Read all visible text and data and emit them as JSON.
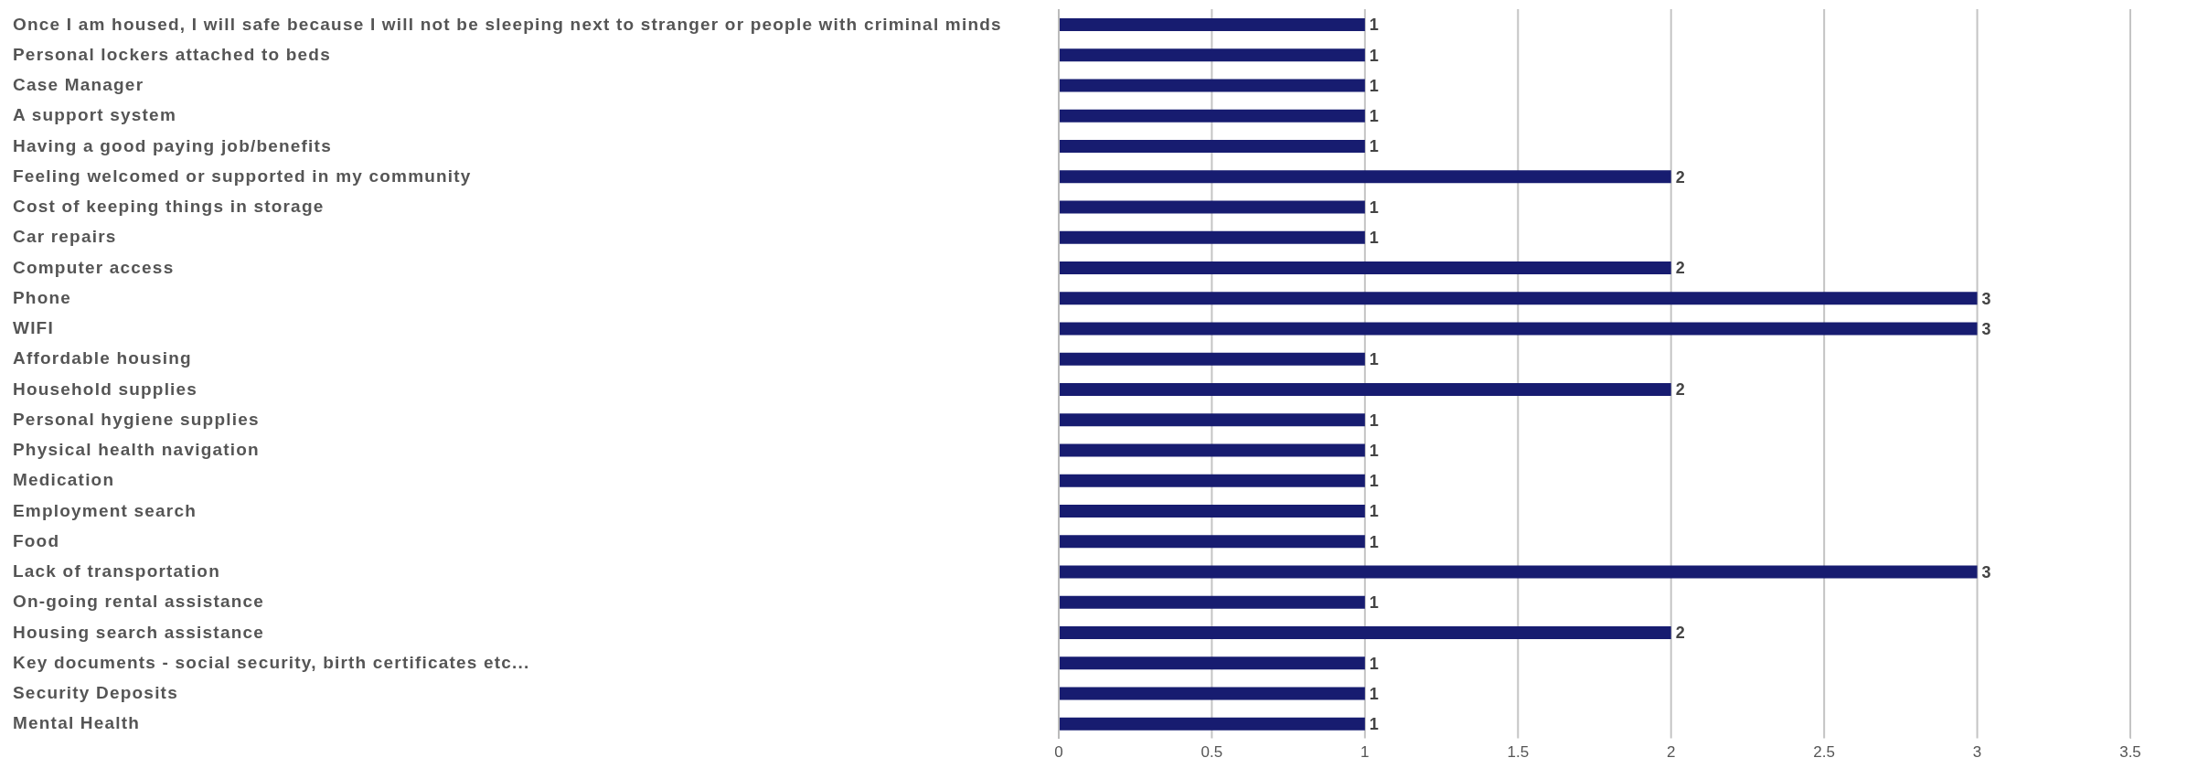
{
  "chart_data": {
    "type": "bar",
    "orientation": "horizontal",
    "categories": [
      "Once I am housed, I will safe because I will not be sleeping next to stranger or people with criminal minds",
      "Personal lockers attached to beds",
      "Case Manager",
      "A support system",
      "Having a good paying job/benefits",
      "Feeling welcomed or supported in my community",
      "Cost of keeping things in storage",
      "Car repairs",
      "Computer access",
      "Phone",
      "WIFI",
      "Affordable housing",
      "Household supplies",
      "Personal hygiene supplies",
      "Physical health navigation",
      "Medication",
      "Employment search",
      "Food",
      "Lack of transportation",
      "On-going rental assistance",
      "Housing search assistance",
      "Key documents - social security, birth certificates etc...",
      "Security Deposits",
      "Mental Health"
    ],
    "values": [
      1,
      1,
      1,
      1,
      1,
      2,
      1,
      1,
      2,
      3,
      3,
      1,
      2,
      1,
      1,
      1,
      1,
      1,
      3,
      1,
      2,
      1,
      1,
      1
    ],
    "color": "#171c70",
    "xlim": [
      0,
      3.5
    ],
    "xticks": [
      0,
      0.5,
      1,
      1.5,
      2,
      2.5,
      3,
      3.5
    ],
    "grid": "x",
    "data_labels": true
  }
}
